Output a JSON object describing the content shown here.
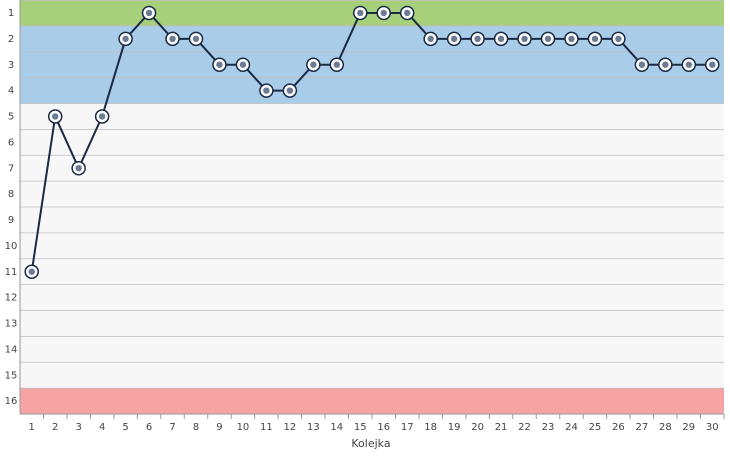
{
  "chart_data": {
    "type": "line",
    "title": "",
    "xlabel": "Kolejka",
    "ylabel": "",
    "x": [
      1,
      2,
      3,
      4,
      5,
      6,
      7,
      8,
      9,
      10,
      11,
      12,
      13,
      14,
      15,
      16,
      17,
      18,
      19,
      20,
      21,
      22,
      23,
      24,
      25,
      26,
      27,
      28,
      29,
      30
    ],
    "xlim": [
      0.5,
      30.5
    ],
    "ylim": [
      16.5,
      0.5
    ],
    "y_inverted": true,
    "y_ticks": [
      1,
      2,
      3,
      4,
      5,
      6,
      7,
      8,
      9,
      10,
      11,
      12,
      13,
      14,
      15,
      16
    ],
    "grid": true,
    "series": [
      {
        "values": [
          11,
          5,
          7,
          5,
          2,
          1,
          2,
          2,
          3,
          3,
          4,
          4,
          3,
          3,
          1,
          1,
          1,
          2,
          2,
          2,
          2,
          2,
          2,
          2,
          2,
          2,
          3,
          3,
          3,
          3
        ],
        "color": "#1b2a44"
      }
    ],
    "zones": [
      {
        "from": 1,
        "to": 1,
        "color": "#a6d07a"
      },
      {
        "from": 2,
        "to": 4,
        "color": "#a9cce9"
      },
      {
        "from": 5,
        "to": 15,
        "color": "#f7f7f7"
      },
      {
        "from": 16,
        "to": 16,
        "color": "#f5a3a3"
      }
    ]
  }
}
